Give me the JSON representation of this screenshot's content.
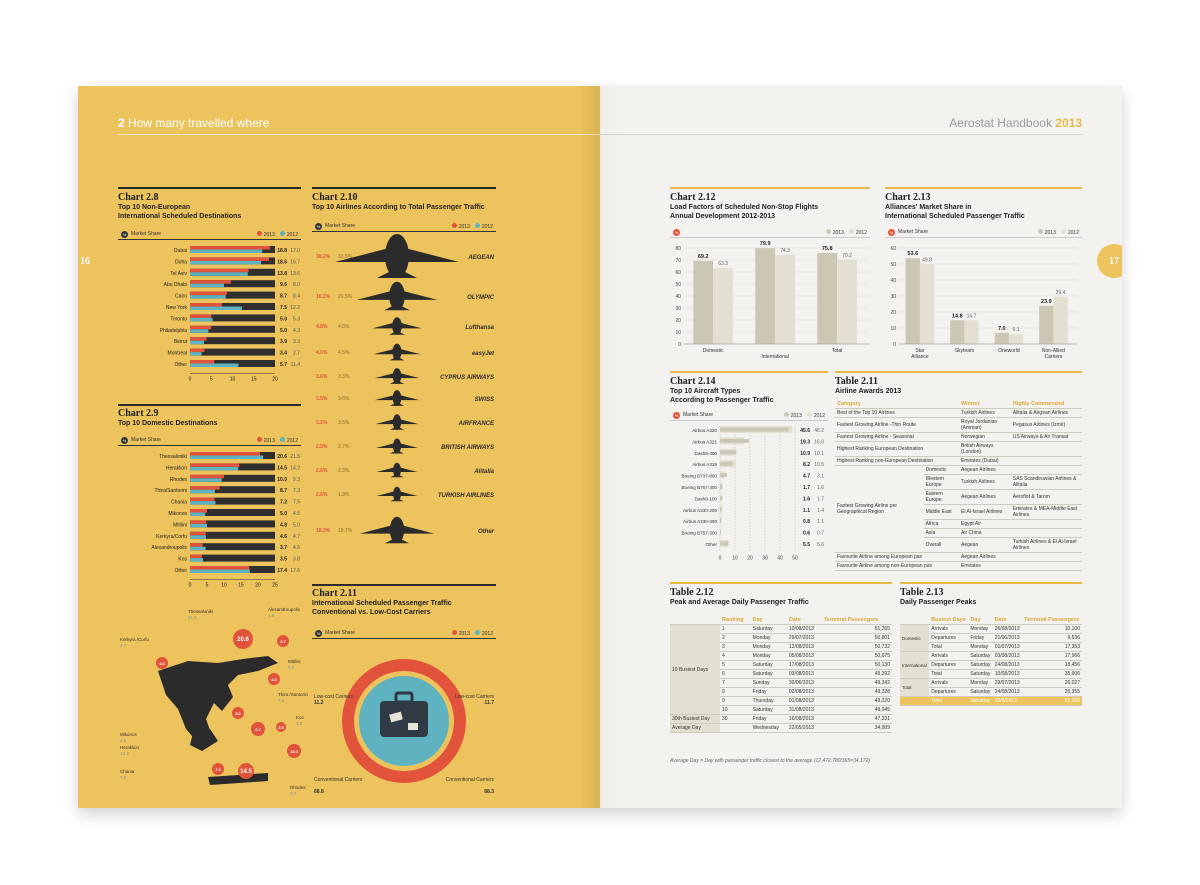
{
  "left_page": {
    "header_num": "2",
    "header_title": "How many travelled where",
    "page_number": "16",
    "chart28": {
      "num": "Chart 2.8",
      "title_l1": "Top 10 Non-European",
      "title_l2": "International Scheduled Destinations"
    },
    "chart29": {
      "num": "Chart 2.9",
      "title_l1": "Top 10 Domestic Destinations"
    },
    "chart210": {
      "num": "Chart 2.10",
      "title_l1": "Top 10 Airlines According to Total Passenger Traffic"
    },
    "chart211": {
      "num": "Chart 2.11",
      "title_l1": "International Scheduled Passenger Traffic",
      "title_l2": "Conventional vs. Low-Cost Carriers"
    },
    "legend_label": "Market Share",
    "legend_2013": "2013",
    "legend_2012": "2012"
  },
  "right_page": {
    "header_title": "Aerostat Handbook",
    "header_year": "2013",
    "page_number": "17",
    "chart212": {
      "num": "Chart 2.12",
      "title_l1": "Load Factors of Scheduled Non-Stop Flights",
      "title_l2": "Annual Development 2012-2013"
    },
    "chart213": {
      "num": "Chart 2.13",
      "title_l1": "Alliances' Market Share in",
      "title_l2": "International Scheduled Passenger Traffic"
    },
    "chart214": {
      "num": "Chart 2.14",
      "title_l1": "Top 10 Aircraft Types",
      "title_l2": "According to Passenger Traffic"
    },
    "table211": {
      "num": "Table 2.11",
      "title_l1": "Airline Awards 2013"
    },
    "table212": {
      "num": "Table 2.12",
      "title_l1": "Peak and Average Daily Passenger Traffic"
    },
    "table213": {
      "num": "Table 2.13",
      "title_l1": "Daily Passenger Peaks"
    },
    "footnote": "Average Day = Day with passenger traffic closest to the average (12,472,780/365=34,172)"
  },
  "colors": {
    "red": "#e2533c",
    "blue": "#5fb3c1",
    "dark": "#2f2f2f",
    "yellow": "#ecc35c",
    "beige_dark": "#cbc7b4",
    "beige_light": "#e3e0d2"
  },
  "chart_data": [
    {
      "id": "chart28",
      "type": "bar",
      "orientation": "horizontal",
      "categories": [
        "Dubai",
        "Doha",
        "Tel Aviv",
        "Abu Dhabi",
        "Cairo",
        "New York",
        "Toronto",
        "Philadelphia",
        "Beirut",
        "Montreal",
        "Other"
      ],
      "series": [
        {
          "name": "2013",
          "values": [
            18.8,
            18.6,
            13.8,
            9.6,
            8.7,
            7.5,
            5.0,
            5.0,
            3.9,
            3.4,
            5.7
          ]
        },
        {
          "name": "2012",
          "values": [
            17.0,
            16.7,
            13.6,
            8.0,
            8.4,
            12.2,
            5.3,
            4.3,
            3.3,
            2.7,
            11.4
          ]
        }
      ],
      "xticks": [
        "0",
        "5",
        "10",
        "15",
        "20"
      ],
      "xlim": [
        0,
        20
      ]
    },
    {
      "id": "chart29",
      "type": "bar",
      "orientation": "horizontal",
      "categories": [
        "Thessaloniki",
        "Heraklion",
        "Rhodes",
        "Thira/Santorini",
        "Chania",
        "Mikonos",
        "Mitilini",
        "Kerkyra/Corfu",
        "Alexandroupolis",
        "Kos",
        "Other"
      ],
      "series": [
        {
          "name": "2013",
          "values": [
            20.6,
            14.5,
            10.0,
            8.7,
            7.2,
            5.0,
            4.8,
            4.6,
            3.7,
            3.5,
            17.4
          ]
        },
        {
          "name": "2012",
          "values": [
            21.5,
            14.2,
            9.3,
            7.3,
            7.5,
            4.5,
            5.0,
            4.7,
            4.6,
            3.8,
            17.6
          ]
        }
      ],
      "xticks": [
        "0",
        "5",
        "10",
        "15",
        "20",
        "25"
      ],
      "xlim": [
        0,
        25
      ]
    },
    {
      "id": "chart210",
      "type": "bar",
      "orientation": "horizontal",
      "categories": [
        "AEGEAN",
        "OLYMPIC",
        "Lufthansa",
        "easyJet",
        "CYPRUS AIRWAYS",
        "SWISS",
        "AIRFRANCE",
        "BRITISH AIRWAYS",
        "Alitalia",
        "TURKISH AIRLINES",
        "Other"
      ],
      "series": [
        {
          "name": "2013",
          "values": [
            38.2,
            16.2,
            4.8,
            4.0,
            3.6,
            3.5,
            3.2,
            2.9,
            2.6,
            2.6,
            18.3
          ]
        },
        {
          "name": "2012",
          "values": [
            33.5,
            20.5,
            4.6,
            4.5,
            3.3,
            3.6,
            3.5,
            2.7,
            2.3,
            1.9,
            19.7
          ]
        }
      ],
      "value_labels_2013": [
        "38.2%",
        "16.2%",
        "4.8%",
        "4.0%",
        "3.6%",
        "3.5%",
        "3.2%",
        "2.9%",
        "2.6%",
        "2.6%",
        "18.3%"
      ],
      "value_labels_2012": [
        "33.5%",
        "20.5%",
        "4.6%",
        "4.5%",
        "3.3%",
        "3.6%",
        "3.5%",
        "2.7%",
        "2.3%",
        "1.9%",
        "19.7%"
      ]
    },
    {
      "id": "chart211",
      "type": "pie",
      "segments": [
        {
          "label": "Low-cost Carriers",
          "v2013": "11.7",
          "v2012": "11.2"
        },
        {
          "label": "Conventional Carriers",
          "v2013": "88.3",
          "v2012": "88.8"
        }
      ]
    },
    {
      "id": "chart212",
      "type": "bar",
      "categories": [
        "Domestic",
        "International",
        "Total"
      ],
      "series": [
        {
          "name": "2013",
          "values": [
            69.2,
            79.9,
            75.8
          ]
        },
        {
          "name": "2012",
          "values": [
            63.3,
            74.3,
            70.2
          ]
        }
      ],
      "yticks": [
        "0",
        "10",
        "20",
        "30",
        "40",
        "50",
        "60",
        "70",
        "80"
      ],
      "ylim": [
        0,
        80
      ]
    },
    {
      "id": "chart213",
      "type": "bar",
      "categories": [
        "Star Alliance",
        "Skyteam",
        "Oneworld",
        "Non-Allied Carriers"
      ],
      "series": [
        {
          "name": "2013",
          "values": [
            53.6,
            14.8,
            7.0,
            23.9
          ]
        },
        {
          "name": "2012",
          "values": [
            49.8,
            14.7,
            6.1,
            29.4
          ]
        }
      ],
      "yticks": [
        "0",
        "10",
        "20",
        "30",
        "40",
        "50",
        "60"
      ],
      "ylim": [
        0,
        60
      ]
    },
    {
      "id": "chart214",
      "type": "bar",
      "orientation": "horizontal",
      "categories": [
        "Airbus A320",
        "Airbus A321",
        "Dash8-400",
        "Airbus A319",
        "Boeing B737-800",
        "Boeing B767-300",
        "Dash8-100",
        "Airbus A330-200",
        "Airbus A330-300",
        "Boeing B757-300",
        "Other"
      ],
      "series": [
        {
          "name": "2013",
          "values": [
            45.6,
            19.3,
            10.9,
            8.2,
            4.7,
            1.7,
            1.6,
            1.1,
            0.8,
            0.6,
            5.5
          ]
        },
        {
          "name": "2012",
          "values": [
            48.2,
            16.0,
            10.1,
            10.5,
            3.1,
            1.6,
            1.7,
            1.4,
            1.1,
            0.7,
            5.6
          ]
        }
      ],
      "xticks": [
        "0",
        "10",
        "20",
        "30",
        "40",
        "50"
      ],
      "xlim": [
        0,
        50
      ]
    }
  ],
  "map": {
    "labels": [
      {
        "name": "Thessaloniki",
        "v2013": "20.6",
        "v2012": "21.5"
      },
      {
        "name": "Alexandroupolis",
        "v2013": "3.7",
        "v2012": "4.6"
      },
      {
        "name": "Kerkyra /Corfu",
        "v2013": "4.6",
        "v2012": "4.7"
      },
      {
        "name": "Mitilini",
        "v2013": "4.8",
        "v2012": "5.0"
      },
      {
        "name": "Thira /Santorini",
        "v2013": "8.7",
        "v2012": "7.3"
      },
      {
        "name": "Kos",
        "v2013": "3.5",
        "v2012": "3.8"
      },
      {
        "name": "Mikonos",
        "v2013": "5.0",
        "v2012": "4.5"
      },
      {
        "name": "Heraklion",
        "v2013": "14.5",
        "v2012": "14.2"
      },
      {
        "name": "Chania",
        "v2013": "7.2",
        "v2012": "7.5"
      },
      {
        "name": "Rhodes",
        "v2013": "10.0",
        "v2012": "9.3"
      }
    ]
  },
  "table211": {
    "headers": [
      "Category",
      "Winner",
      "Highly Commended"
    ],
    "rows": [
      [
        "Best of the Top 10 Airlines",
        "Turkish Airlines",
        "Alitalia & Aegean Airlines"
      ],
      [
        "Fastest Growing Airline -Thin Route",
        "Royal Jordanian (Amman)",
        "Pegasus Airlines (Izmir)"
      ],
      [
        "Fastest Growing Airline - Seasonal",
        "Norwegian",
        "US Airways & Air Transat"
      ],
      [
        "Highest Ranking European Destination",
        "British Airways (London)",
        ""
      ],
      [
        "Highest Ranking non-European Destination",
        "Emirates (Dubai)",
        ""
      ]
    ],
    "region_group": "Fastest Growing Airline per Geographical Region",
    "regions": [
      [
        "Domestic",
        "Aegean Airlines",
        ""
      ],
      [
        "Western Europe",
        "Turkish Airlines",
        "SAS Scandinavian Airlines & Alitalia"
      ],
      [
        "Eastern Europe",
        "Aegean Airlines",
        "Aeroflot & Tarom"
      ],
      [
        "Middle East",
        "El Al-Israel Airlines",
        "Emirates & MEA-Middle East Airlines"
      ],
      [
        "Africa",
        "Egypt Air",
        ""
      ],
      [
        "Asia",
        "Air China",
        ""
      ],
      [
        "Overall",
        "Aegean",
        "Turkish Airlines & El Al-Israel Airlines"
      ]
    ],
    "footer_rows": [
      [
        "Favourite Airline among European pax",
        "Aegean Airlines",
        ""
      ],
      [
        "Favourite Airline among non-European pax",
        "Emirates",
        ""
      ]
    ]
  },
  "table212": {
    "headers": [
      "Ranking",
      "Day",
      "Date",
      "Terminal Passengers"
    ],
    "group": "10 Busiest Days",
    "rows": [
      [
        "1",
        "Saturday",
        "10/08/2013",
        "51,265"
      ],
      [
        "2",
        "Monday",
        "29/07/2013",
        "50,801"
      ],
      [
        "3",
        "Monday",
        "12/08/2013",
        "50,732"
      ],
      [
        "4",
        "Monday",
        "05/08/2013",
        "50,675"
      ],
      [
        "5",
        "Saturday",
        "17/08/2013",
        "50,130"
      ],
      [
        "6",
        "Saturday",
        "03/08/2013",
        "49,392"
      ],
      [
        "7",
        "Sunday",
        "30/06/2013",
        "49,342"
      ],
      [
        "8",
        "Friday",
        "02/08/2013",
        "49,328"
      ],
      [
        "9",
        "Thursday",
        "01/08/2013",
        "49,220"
      ],
      [
        "10",
        "Saturday",
        "31/08/2013",
        "49,045"
      ]
    ],
    "extra": [
      [
        "30th Busiest Day",
        "30",
        "Friday",
        "16/08/2013",
        "47,331"
      ],
      [
        "Average Day",
        "",
        "Wednesday",
        "22/05/2013",
        "34,009"
      ]
    ]
  },
  "table213": {
    "headers": [
      "Busiest Days",
      "Day",
      "Date",
      "Terminal Passengers"
    ],
    "groups": [
      {
        "name": "Domestic",
        "rows": [
          [
            "Arrivals",
            "Monday",
            "26/08/2013",
            "10,100"
          ],
          [
            "Departures",
            "Friday",
            "21/06/2013",
            "9,536"
          ],
          [
            "Total",
            "Monday",
            "01/07/2013",
            "17,353"
          ]
        ]
      },
      {
        "name": "International",
        "rows": [
          [
            "Arrivals",
            "Saturday",
            "03/08/2013",
            "17,966"
          ],
          [
            "Departures",
            "Saturday",
            "24/08/2013",
            "18,456"
          ],
          [
            "Total",
            "Saturday",
            "10/08/2013",
            "35,906"
          ]
        ]
      },
      {
        "name": "Total",
        "rows": [
          [
            "Arrivals",
            "Monday",
            "29/07/2013",
            "26,027"
          ],
          [
            "Departures",
            "Saturday",
            "24/08/2013",
            "26,355"
          ]
        ]
      }
    ],
    "total_row": [
      "Total",
      "Saturday",
      "10/8/2013",
      "51,265"
    ]
  }
}
